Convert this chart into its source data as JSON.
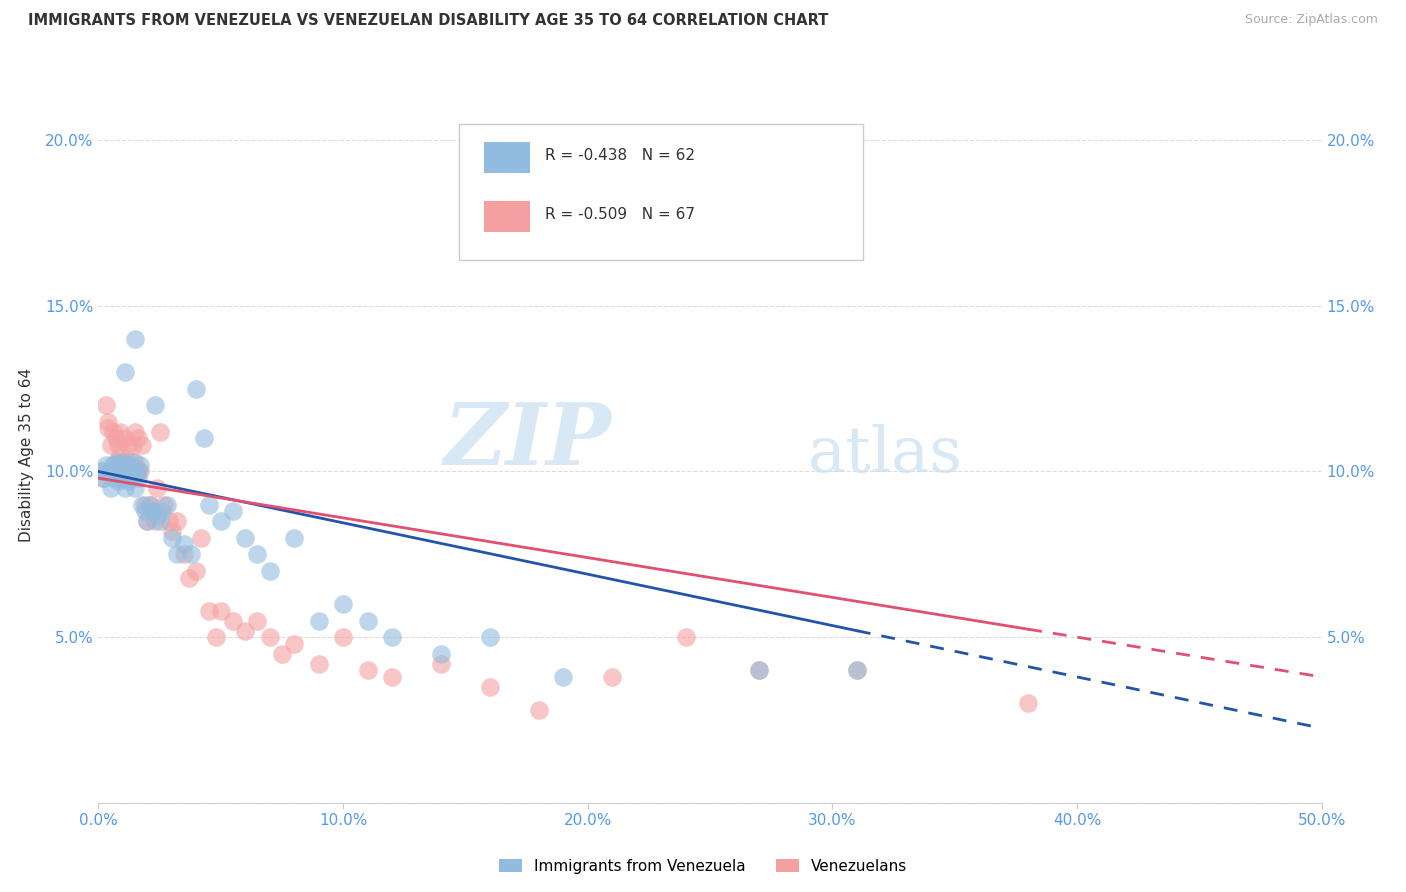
{
  "title": "IMMIGRANTS FROM VENEZUELA VS VENEZUELAN DISABILITY AGE 35 TO 64 CORRELATION CHART",
  "source": "Source: ZipAtlas.com",
  "ylabel": "Disability Age 35 to 64",
  "legend_label1": "Immigrants from Venezuela",
  "legend_label2": "Venezuelans",
  "r1": "-0.438",
  "n1": "62",
  "r2": "-0.509",
  "n2": "67",
  "color1": "#92bcdf",
  "color2": "#f4a0a0",
  "line_color1": "#2255aa",
  "line_color2": "#e05070",
  "xlim": [
    0.0,
    0.5
  ],
  "ylim": [
    0.0,
    0.21
  ],
  "xticks": [
    0.0,
    0.1,
    0.2,
    0.3,
    0.4,
    0.5
  ],
  "xtick_labels": [
    "0.0%",
    "10.0%",
    "20.0%",
    "30.0%",
    "40.0%",
    "50.0%"
  ],
  "yticks": [
    0.0,
    0.05,
    0.1,
    0.15,
    0.2
  ],
  "ytick_labels": [
    "",
    "5.0%",
    "10.0%",
    "15.0%",
    "20.0%"
  ],
  "blue_x": [
    0.001,
    0.002,
    0.003,
    0.004,
    0.005,
    0.005,
    0.006,
    0.006,
    0.007,
    0.007,
    0.008,
    0.008,
    0.009,
    0.009,
    0.01,
    0.01,
    0.01,
    0.011,
    0.011,
    0.012,
    0.012,
    0.013,
    0.013,
    0.014,
    0.014,
    0.015,
    0.015,
    0.016,
    0.016,
    0.017,
    0.018,
    0.019,
    0.02,
    0.021,
    0.022,
    0.023,
    0.024,
    0.025,
    0.026,
    0.028,
    0.03,
    0.032,
    0.035,
    0.038,
    0.04,
    0.043,
    0.045,
    0.05,
    0.055,
    0.06,
    0.065,
    0.07,
    0.08,
    0.09,
    0.1,
    0.11,
    0.12,
    0.14,
    0.16,
    0.19,
    0.27,
    0.31
  ],
  "blue_y": [
    0.1,
    0.098,
    0.102,
    0.1,
    0.095,
    0.1,
    0.098,
    0.102,
    0.1,
    0.103,
    0.097,
    0.1,
    0.099,
    0.102,
    0.1,
    0.098,
    0.103,
    0.13,
    0.095,
    0.097,
    0.1,
    0.098,
    0.102,
    0.1,
    0.103,
    0.14,
    0.095,
    0.1,
    0.098,
    0.102,
    0.09,
    0.088,
    0.085,
    0.09,
    0.088,
    0.12,
    0.087,
    0.085,
    0.088,
    0.09,
    0.08,
    0.075,
    0.078,
    0.075,
    0.125,
    0.11,
    0.09,
    0.085,
    0.088,
    0.08,
    0.075,
    0.07,
    0.08,
    0.055,
    0.06,
    0.055,
    0.05,
    0.045,
    0.05,
    0.038,
    0.04,
    0.04
  ],
  "pink_x": [
    0.001,
    0.002,
    0.003,
    0.004,
    0.004,
    0.005,
    0.005,
    0.006,
    0.006,
    0.007,
    0.007,
    0.008,
    0.008,
    0.009,
    0.009,
    0.01,
    0.01,
    0.01,
    0.011,
    0.011,
    0.012,
    0.012,
    0.013,
    0.013,
    0.014,
    0.015,
    0.015,
    0.016,
    0.016,
    0.017,
    0.018,
    0.019,
    0.02,
    0.021,
    0.022,
    0.023,
    0.024,
    0.025,
    0.027,
    0.029,
    0.03,
    0.032,
    0.035,
    0.037,
    0.04,
    0.042,
    0.045,
    0.048,
    0.05,
    0.055,
    0.06,
    0.065,
    0.07,
    0.075,
    0.08,
    0.09,
    0.1,
    0.11,
    0.12,
    0.14,
    0.16,
    0.18,
    0.21,
    0.24,
    0.27,
    0.31,
    0.38
  ],
  "pink_y": [
    0.1,
    0.098,
    0.12,
    0.113,
    0.115,
    0.108,
    0.1,
    0.112,
    0.102,
    0.11,
    0.1,
    0.103,
    0.108,
    0.112,
    0.105,
    0.1,
    0.103,
    0.098,
    0.11,
    0.1,
    0.103,
    0.108,
    0.1,
    0.102,
    0.108,
    0.103,
    0.112,
    0.11,
    0.1,
    0.1,
    0.108,
    0.09,
    0.085,
    0.09,
    0.088,
    0.085,
    0.095,
    0.112,
    0.09,
    0.085,
    0.082,
    0.085,
    0.075,
    0.068,
    0.07,
    0.08,
    0.058,
    0.05,
    0.058,
    0.055,
    0.052,
    0.055,
    0.05,
    0.045,
    0.048,
    0.042,
    0.05,
    0.04,
    0.038,
    0.042,
    0.035,
    0.028,
    0.038,
    0.05,
    0.04,
    0.04,
    0.03
  ],
  "watermark_zip": "ZIP",
  "watermark_atlas": "atlas",
  "background_color": "#ffffff",
  "grid_color": "#dddddd",
  "line_intercept_blue": 0.1,
  "line_slope_blue": -0.155,
  "line_intercept_pink": 0.098,
  "line_slope_pink": -0.12
}
